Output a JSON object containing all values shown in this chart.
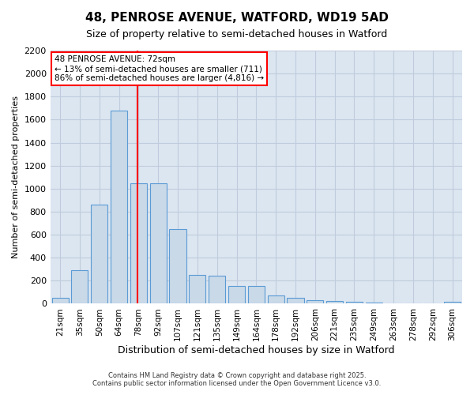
{
  "title1": "48, PENROSE AVENUE, WATFORD, WD19 5AD",
  "title2": "Size of property relative to semi-detached houses in Watford",
  "xlabel": "Distribution of semi-detached houses by size in Watford",
  "ylabel": "Number of semi-detached properties",
  "footer1": "Contains HM Land Registry data © Crown copyright and database right 2025.",
  "footer2": "Contains public sector information licensed under the Open Government Licence v3.0.",
  "annotation_line1": "48 PENROSE AVENUE: 72sqm",
  "annotation_line2": "← 13% of semi-detached houses are smaller (711)",
  "annotation_line3": "86% of semi-detached houses are larger (4,816) →",
  "bar_color": "#c9d9e8",
  "bar_edge_color": "#5b9bd5",
  "vline_color": "red",
  "grid_color": "#c0ccdd",
  "bg_color": "#dce6f1",
  "categories": [
    "21sqm",
    "35sqm",
    "50sqm",
    "64sqm",
    "78sqm",
    "92sqm",
    "107sqm",
    "121sqm",
    "135sqm",
    "149sqm",
    "164sqm",
    "178sqm",
    "192sqm",
    "206sqm",
    "221sqm",
    "235sqm",
    "249sqm",
    "263sqm",
    "278sqm",
    "292sqm",
    "306sqm"
  ],
  "values": [
    50,
    290,
    860,
    1680,
    1050,
    1050,
    650,
    250,
    240,
    155,
    155,
    70,
    50,
    30,
    25,
    20,
    10,
    5,
    5,
    3,
    20
  ],
  "vline_x": 3.925,
  "ylim": [
    0,
    2200
  ],
  "yticks": [
    0,
    200,
    400,
    600,
    800,
    1000,
    1200,
    1400,
    1600,
    1800,
    2000,
    2200
  ]
}
